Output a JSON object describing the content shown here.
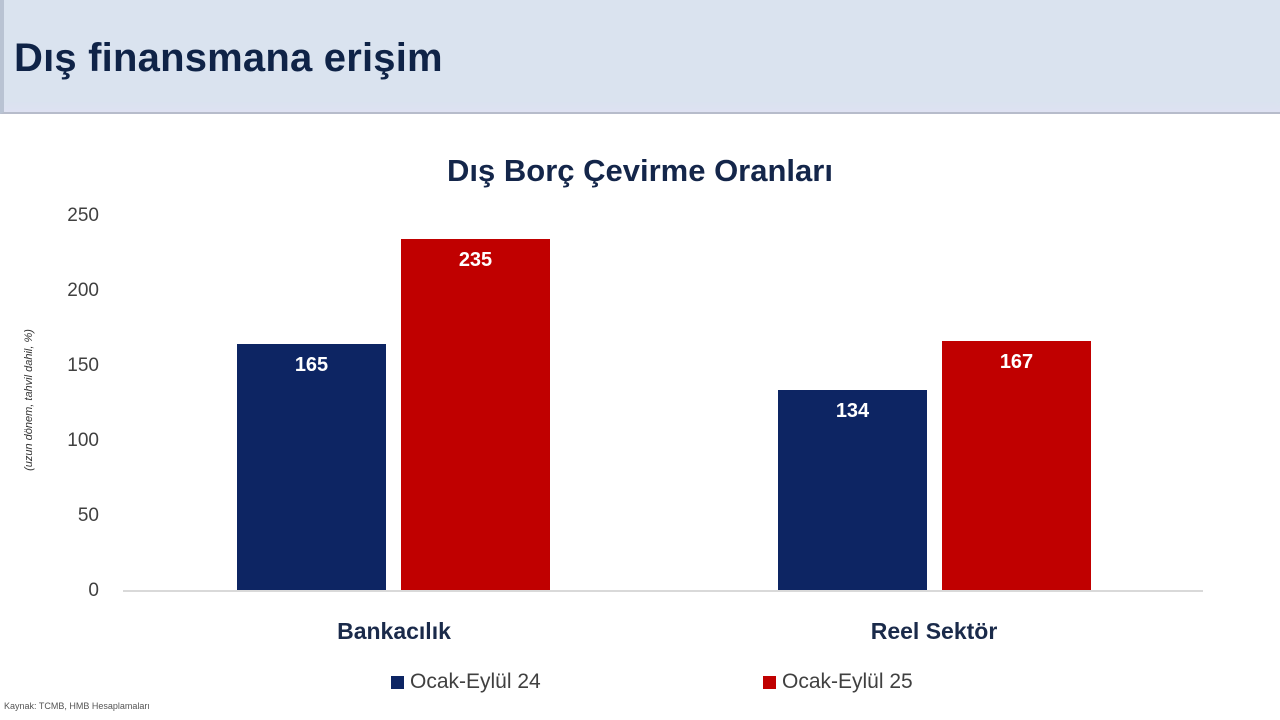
{
  "slide": {
    "title": "Dış finansmana erişim",
    "footnote": "Kaynak: TCMB, HMB Hesaplamaları"
  },
  "colors": {
    "header_bg": "#dae3ef",
    "title_text": "#0f2347",
    "series_24": "#0d2563",
    "series_25": "#c00000"
  },
  "chart_data": {
    "type": "bar",
    "title": "Dış Borç Çevirme Oranları",
    "xlabel": "",
    "ylabel": "(uzun dönem, tahvil dahil, %)",
    "categories": [
      "Bankacılık",
      "Reel Sektör"
    ],
    "series": [
      {
        "name": "Ocak-Eylül 24",
        "color": "#0d2563",
        "values": [
          165,
          134
        ]
      },
      {
        "name": "Ocak-Eylül 25",
        "color": "#c00000",
        "values": [
          235,
          167
        ]
      }
    ],
    "ylim": [
      0,
      250
    ],
    "yticks": [
      "250",
      "200",
      "150",
      "100",
      "50",
      "0"
    ],
    "data_labels": true,
    "grid": false,
    "legend_position": "bottom"
  }
}
